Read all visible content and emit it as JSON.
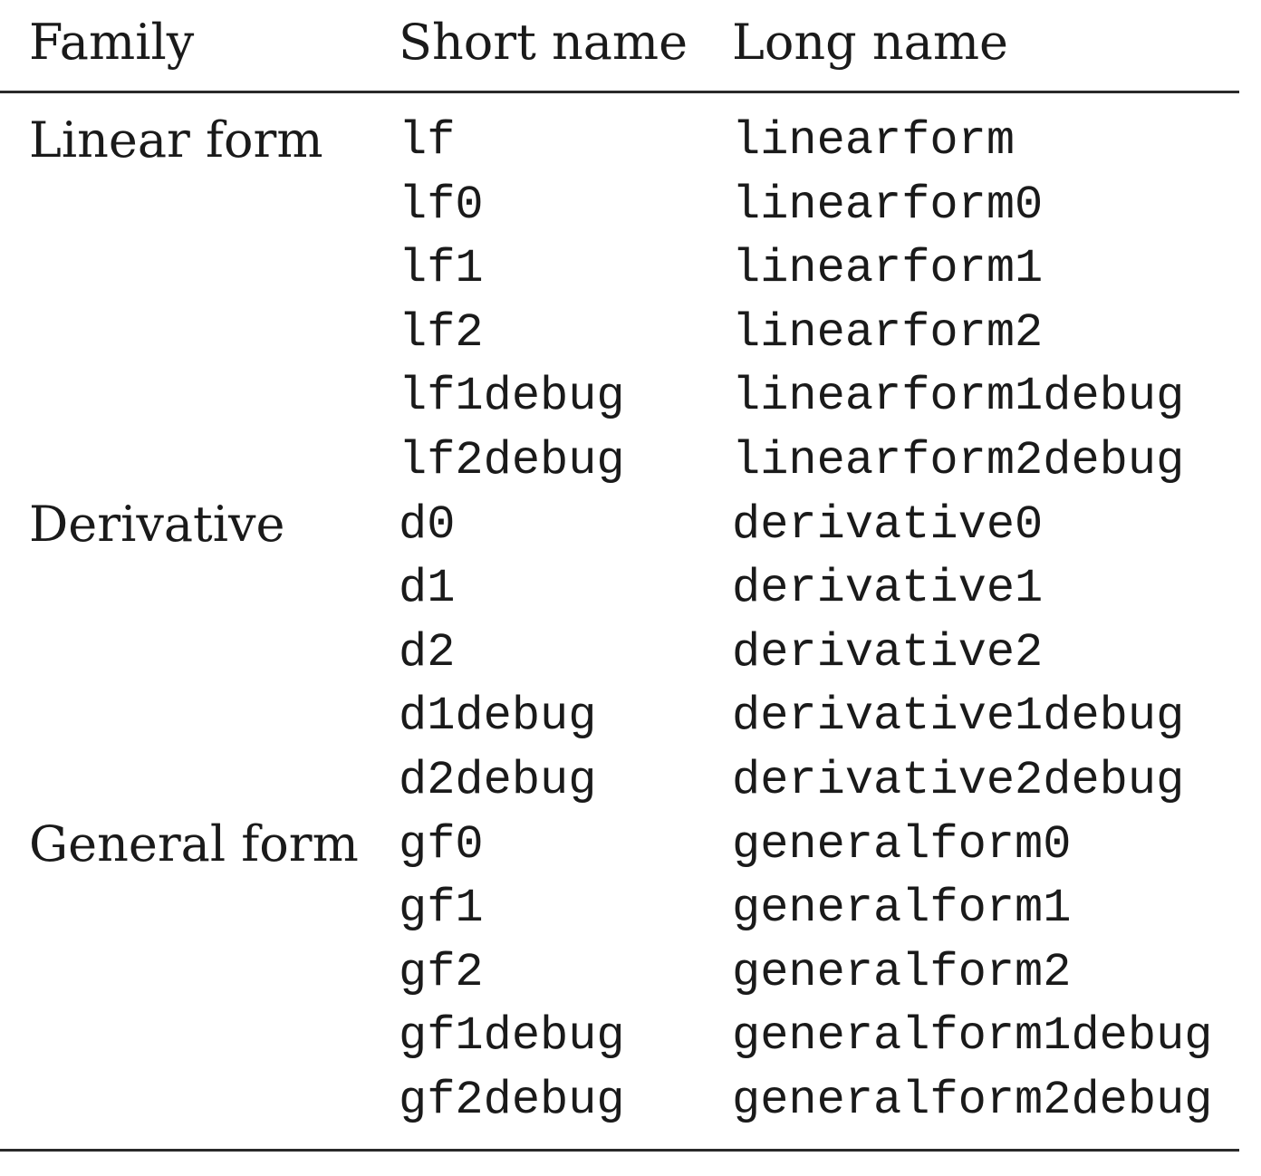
{
  "headers": {
    "family": "Family",
    "short": "Short name",
    "long": "Long name"
  },
  "rows": [
    {
      "family": "Linear form",
      "short": "lf",
      "long": "linearform"
    },
    {
      "family": "",
      "short": "lf0",
      "long": "linearform0"
    },
    {
      "family": "",
      "short": "lf1",
      "long": "linearform1"
    },
    {
      "family": "",
      "short": "lf2",
      "long": "linearform2"
    },
    {
      "family": "",
      "short": "lf1debug",
      "long": "linearform1debug"
    },
    {
      "family": "",
      "short": "lf2debug",
      "long": "linearform2debug"
    },
    {
      "family": "Derivative",
      "short": "d0",
      "long": "derivative0"
    },
    {
      "family": "",
      "short": "d1",
      "long": "derivative1"
    },
    {
      "family": "",
      "short": "d2",
      "long": "derivative2"
    },
    {
      "family": "",
      "short": "d1debug",
      "long": "derivative1debug"
    },
    {
      "family": "",
      "short": "d2debug",
      "long": "derivative2debug"
    },
    {
      "family": "General form",
      "short": "gf0",
      "long": "generalform0"
    },
    {
      "family": "",
      "short": "gf1",
      "long": "generalform1"
    },
    {
      "family": "",
      "short": "gf2",
      "long": "generalform2"
    },
    {
      "family": "",
      "short": "gf1debug",
      "long": "generalform1debug"
    },
    {
      "family": "",
      "short": "gf2debug",
      "long": "generalform2debug"
    }
  ]
}
